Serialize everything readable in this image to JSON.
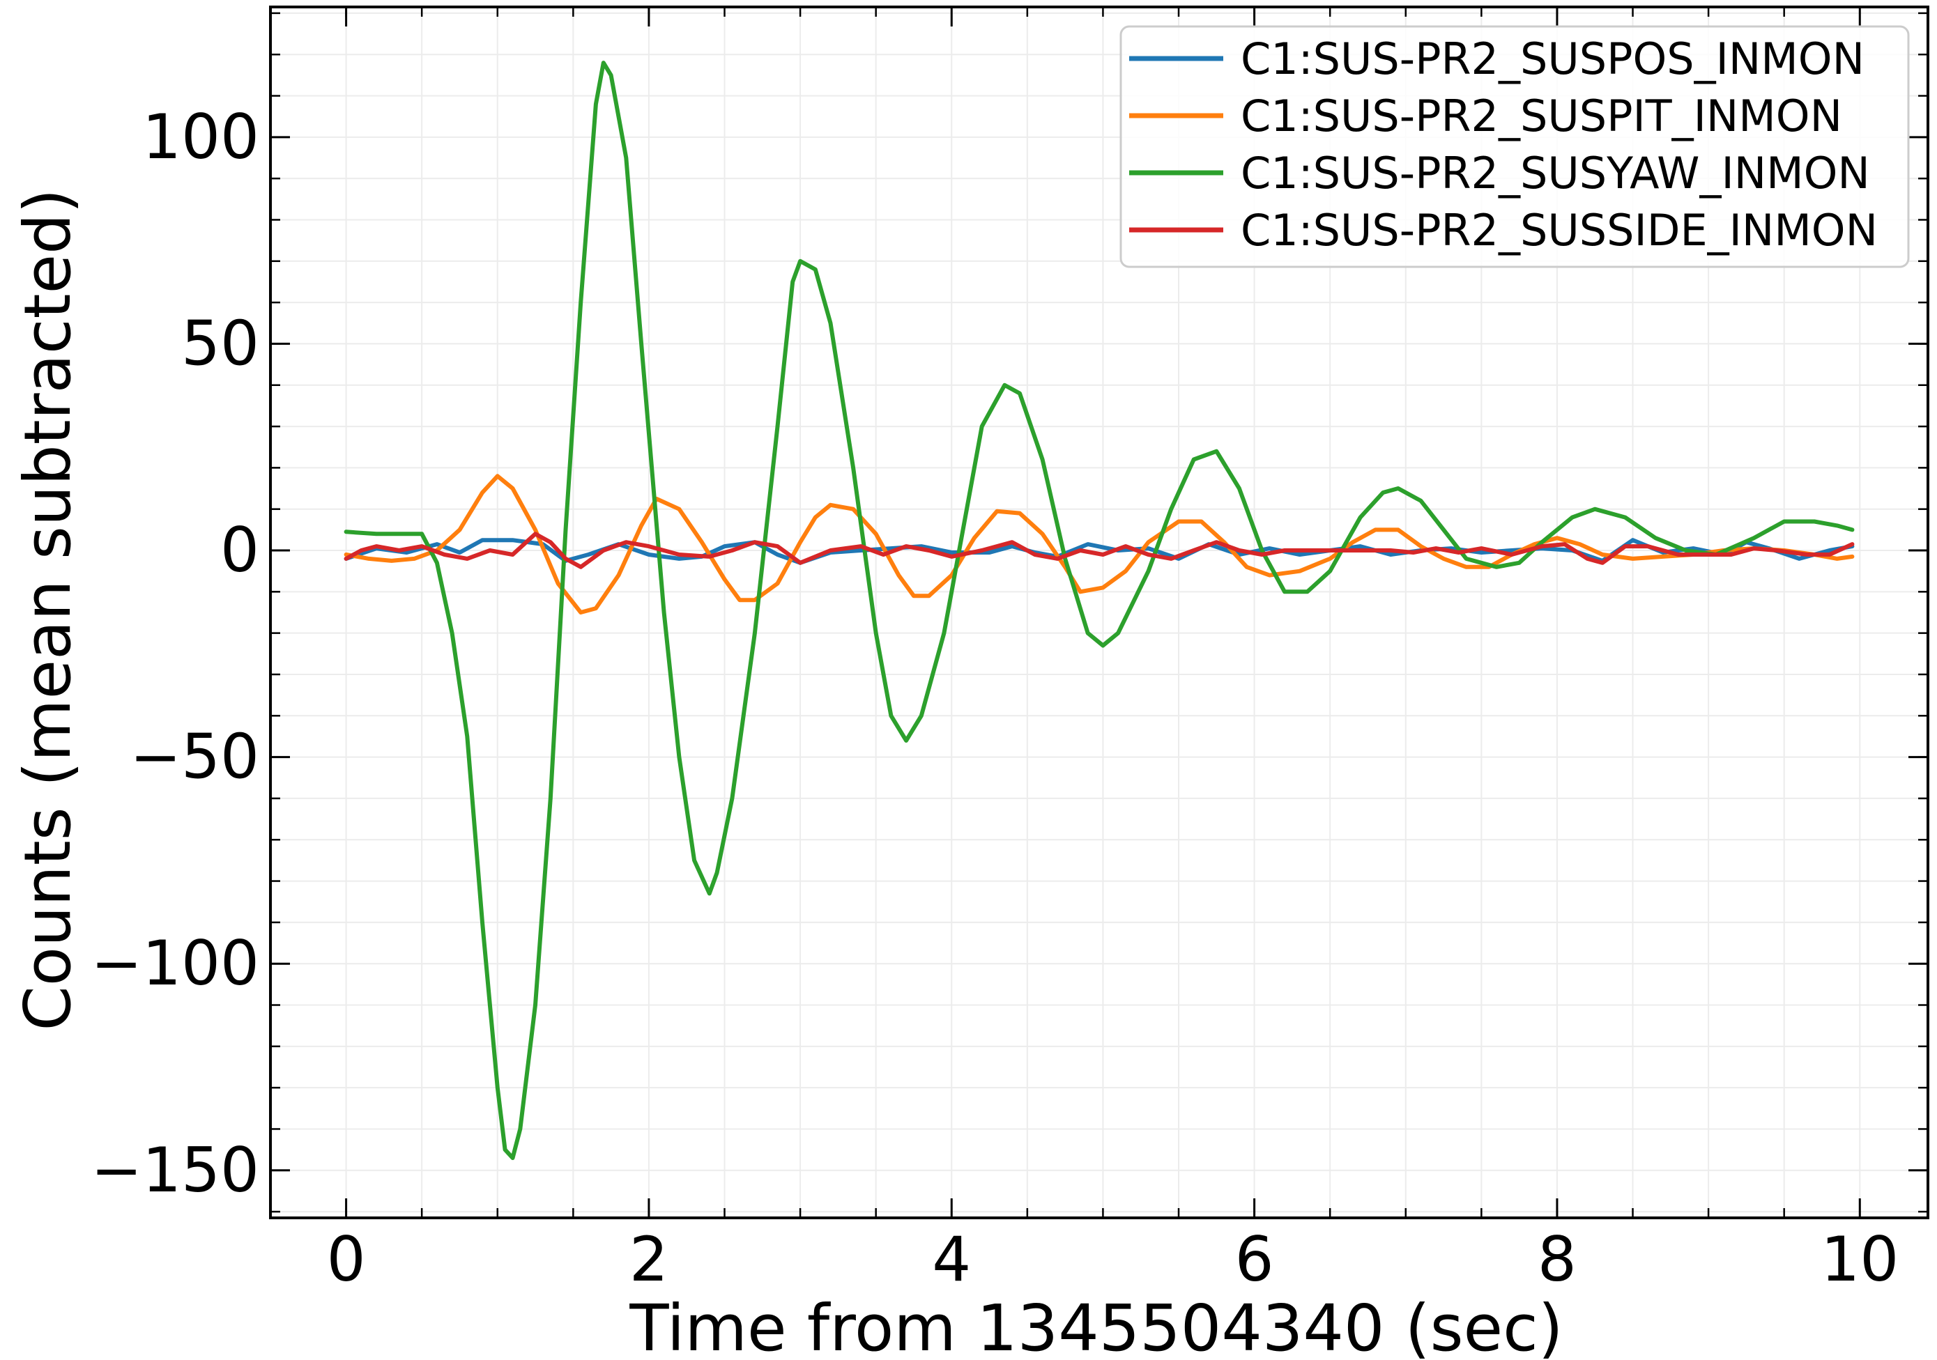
{
  "chart_data": {
    "type": "line",
    "title": "",
    "xlabel": "Time from 1345504340 (sec)",
    "ylabel": "Counts (mean subtracted)",
    "xlim": [
      -0.5,
      10.45
    ],
    "ylim": [
      -161.5,
      131.5
    ],
    "x_ticks": [
      0,
      2,
      4,
      6,
      8,
      10
    ],
    "y_ticks": [
      -150,
      -100,
      -50,
      0,
      50,
      100
    ],
    "x_tick_labels": [
      "0",
      "2",
      "4",
      "6",
      "8",
      "10"
    ],
    "y_tick_labels": [
      "−150",
      "−100",
      "−50",
      "0",
      "50",
      "100"
    ],
    "grid": true,
    "legend_position": "top-right",
    "series": [
      {
        "name": "C1:SUS-PR2_SUSPOS_INMON",
        "color": "#1f77b4",
        "points": [
          [
            0,
            -2
          ],
          [
            0.2,
            0.5
          ],
          [
            0.4,
            -0.5
          ],
          [
            0.6,
            1.5
          ],
          [
            0.75,
            -0.5
          ],
          [
            0.9,
            2.5
          ],
          [
            1.1,
            2.5
          ],
          [
            1.3,
            1.5
          ],
          [
            1.45,
            -2.5
          ],
          [
            1.6,
            -1
          ],
          [
            1.8,
            1.5
          ],
          [
            2.0,
            -1
          ],
          [
            2.2,
            -2
          ],
          [
            2.35,
            -1.5
          ],
          [
            2.5,
            1
          ],
          [
            2.7,
            2
          ],
          [
            2.85,
            -1
          ],
          [
            3.0,
            -3
          ],
          [
            3.2,
            -0.5
          ],
          [
            3.4,
            0
          ],
          [
            3.6,
            0.5
          ],
          [
            3.8,
            1
          ],
          [
            4.0,
            -0.5
          ],
          [
            4.25,
            -0.5
          ],
          [
            4.4,
            1
          ],
          [
            4.55,
            -0.5
          ],
          [
            4.7,
            -1.5
          ],
          [
            4.9,
            1.5
          ],
          [
            5.1,
            0
          ],
          [
            5.3,
            0.5
          ],
          [
            5.5,
            -2
          ],
          [
            5.7,
            1.5
          ],
          [
            5.9,
            -1
          ],
          [
            6.1,
            0.5
          ],
          [
            6.3,
            -1
          ],
          [
            6.5,
            0
          ],
          [
            6.7,
            1
          ],
          [
            6.9,
            -1
          ],
          [
            7.1,
            0
          ],
          [
            7.3,
            0.5
          ],
          [
            7.5,
            -0.5
          ],
          [
            7.7,
            0
          ],
          [
            7.9,
            0.5
          ],
          [
            8.1,
            0
          ],
          [
            8.3,
            -2.5
          ],
          [
            8.5,
            2.5
          ],
          [
            8.7,
            -0.5
          ],
          [
            8.9,
            0.5
          ],
          [
            9.1,
            -1
          ],
          [
            9.25,
            2
          ],
          [
            9.4,
            0.5
          ],
          [
            9.6,
            -2
          ],
          [
            9.8,
            0
          ],
          [
            9.95,
            1
          ]
        ]
      },
      {
        "name": "C1:SUS-PR2_SUSPIT_INMON",
        "color": "#ff7f0e",
        "points": [
          [
            0,
            -1
          ],
          [
            0.15,
            -2
          ],
          [
            0.3,
            -2.5
          ],
          [
            0.45,
            -2
          ],
          [
            0.6,
            0
          ],
          [
            0.75,
            5
          ],
          [
            0.9,
            14
          ],
          [
            1.0,
            18
          ],
          [
            1.1,
            15
          ],
          [
            1.25,
            5
          ],
          [
            1.4,
            -8
          ],
          [
            1.55,
            -15
          ],
          [
            1.65,
            -14
          ],
          [
            1.8,
            -6
          ],
          [
            1.95,
            6
          ],
          [
            2.05,
            12.5
          ],
          [
            2.2,
            10
          ],
          [
            2.35,
            2
          ],
          [
            2.5,
            -7
          ],
          [
            2.6,
            -12
          ],
          [
            2.7,
            -12
          ],
          [
            2.85,
            -8
          ],
          [
            3.0,
            2
          ],
          [
            3.1,
            8
          ],
          [
            3.2,
            11
          ],
          [
            3.35,
            10
          ],
          [
            3.5,
            4
          ],
          [
            3.65,
            -6
          ],
          [
            3.75,
            -11
          ],
          [
            3.85,
            -11
          ],
          [
            4.0,
            -6
          ],
          [
            4.15,
            3
          ],
          [
            4.3,
            9.5
          ],
          [
            4.45,
            9
          ],
          [
            4.6,
            4
          ],
          [
            4.75,
            -4
          ],
          [
            4.85,
            -10
          ],
          [
            5.0,
            -9
          ],
          [
            5.15,
            -5
          ],
          [
            5.3,
            2
          ],
          [
            5.5,
            7
          ],
          [
            5.65,
            7
          ],
          [
            5.8,
            2
          ],
          [
            5.95,
            -4
          ],
          [
            6.1,
            -6
          ],
          [
            6.3,
            -5
          ],
          [
            6.5,
            -2
          ],
          [
            6.65,
            2
          ],
          [
            6.8,
            5
          ],
          [
            6.95,
            5
          ],
          [
            7.1,
            1
          ],
          [
            7.25,
            -2
          ],
          [
            7.4,
            -4
          ],
          [
            7.55,
            -4
          ],
          [
            7.7,
            -1
          ],
          [
            7.85,
            1.5
          ],
          [
            8.0,
            3
          ],
          [
            8.15,
            1.5
          ],
          [
            8.3,
            -1
          ],
          [
            8.5,
            -2
          ],
          [
            8.7,
            -1.5
          ],
          [
            8.9,
            -1
          ],
          [
            9.1,
            0
          ],
          [
            9.3,
            0.5
          ],
          [
            9.5,
            0
          ],
          [
            9.7,
            -1
          ],
          [
            9.85,
            -2
          ],
          [
            9.95,
            -1.5
          ]
        ]
      },
      {
        "name": "C1:SUS-PR2_SUSYAW_INMON",
        "color": "#2ca02c",
        "points": [
          [
            0,
            4.5
          ],
          [
            0.2,
            4
          ],
          [
            0.35,
            4
          ],
          [
            0.5,
            4
          ],
          [
            0.6,
            -3
          ],
          [
            0.7,
            -20
          ],
          [
            0.8,
            -45
          ],
          [
            0.9,
            -90
          ],
          [
            1.0,
            -130
          ],
          [
            1.05,
            -145
          ],
          [
            1.1,
            -147
          ],
          [
            1.15,
            -140
          ],
          [
            1.25,
            -110
          ],
          [
            1.35,
            -60
          ],
          [
            1.45,
            5
          ],
          [
            1.55,
            60
          ],
          [
            1.65,
            108
          ],
          [
            1.7,
            118
          ],
          [
            1.75,
            115
          ],
          [
            1.85,
            95
          ],
          [
            1.95,
            50
          ],
          [
            2.1,
            -15
          ],
          [
            2.2,
            -50
          ],
          [
            2.3,
            -75
          ],
          [
            2.4,
            -83
          ],
          [
            2.45,
            -78
          ],
          [
            2.55,
            -60
          ],
          [
            2.7,
            -20
          ],
          [
            2.85,
            30
          ],
          [
            2.95,
            65
          ],
          [
            3.0,
            70
          ],
          [
            3.1,
            68
          ],
          [
            3.2,
            55
          ],
          [
            3.35,
            20
          ],
          [
            3.5,
            -20
          ],
          [
            3.6,
            -40
          ],
          [
            3.7,
            -46
          ],
          [
            3.8,
            -40
          ],
          [
            3.95,
            -20
          ],
          [
            4.1,
            10
          ],
          [
            4.2,
            30
          ],
          [
            4.35,
            40
          ],
          [
            4.45,
            38
          ],
          [
            4.6,
            22
          ],
          [
            4.75,
            -2
          ],
          [
            4.9,
            -20
          ],
          [
            5.0,
            -23
          ],
          [
            5.1,
            -20
          ],
          [
            5.3,
            -5
          ],
          [
            5.45,
            10
          ],
          [
            5.6,
            22
          ],
          [
            5.75,
            24
          ],
          [
            5.9,
            15
          ],
          [
            6.05,
            0
          ],
          [
            6.2,
            -10
          ],
          [
            6.35,
            -10
          ],
          [
            6.5,
            -5
          ],
          [
            6.7,
            8
          ],
          [
            6.85,
            14
          ],
          [
            6.95,
            15
          ],
          [
            7.1,
            12
          ],
          [
            7.25,
            5
          ],
          [
            7.4,
            -2
          ],
          [
            7.6,
            -4
          ],
          [
            7.75,
            -3
          ],
          [
            7.9,
            2
          ],
          [
            8.1,
            8
          ],
          [
            8.25,
            10
          ],
          [
            8.45,
            8
          ],
          [
            8.65,
            3
          ],
          [
            8.85,
            0
          ],
          [
            9.05,
            -1
          ],
          [
            9.3,
            3
          ],
          [
            9.5,
            7
          ],
          [
            9.7,
            7
          ],
          [
            9.85,
            6
          ],
          [
            9.95,
            5
          ]
        ]
      },
      {
        "name": "C1:SUS-PR2_SUSSIDE_INMON",
        "color": "#d62728",
        "points": [
          [
            0,
            -2
          ],
          [
            0.1,
            0
          ],
          [
            0.2,
            1
          ],
          [
            0.35,
            0
          ],
          [
            0.5,
            1
          ],
          [
            0.65,
            -1
          ],
          [
            0.8,
            -2
          ],
          [
            0.95,
            0
          ],
          [
            1.1,
            -1
          ],
          [
            1.25,
            4
          ],
          [
            1.35,
            2
          ],
          [
            1.45,
            -2
          ],
          [
            1.55,
            -4
          ],
          [
            1.7,
            0
          ],
          [
            1.85,
            2
          ],
          [
            2.0,
            1
          ],
          [
            2.2,
            -1
          ],
          [
            2.4,
            -1.5
          ],
          [
            2.55,
            0
          ],
          [
            2.7,
            2
          ],
          [
            2.85,
            1
          ],
          [
            3.0,
            -3
          ],
          [
            3.2,
            0
          ],
          [
            3.4,
            1
          ],
          [
            3.55,
            -1
          ],
          [
            3.7,
            1
          ],
          [
            3.85,
            0
          ],
          [
            4.0,
            -1.5
          ],
          [
            4.2,
            0
          ],
          [
            4.4,
            2
          ],
          [
            4.55,
            -1
          ],
          [
            4.7,
            -2
          ],
          [
            4.85,
            0
          ],
          [
            5.0,
            -1
          ],
          [
            5.15,
            1
          ],
          [
            5.3,
            -1
          ],
          [
            5.45,
            -2
          ],
          [
            5.6,
            0
          ],
          [
            5.75,
            2
          ],
          [
            5.9,
            0
          ],
          [
            6.05,
            -1
          ],
          [
            6.2,
            0
          ],
          [
            6.45,
            0
          ],
          [
            6.7,
            0
          ],
          [
            6.9,
            0
          ],
          [
            7.05,
            -0.5
          ],
          [
            7.2,
            0.5
          ],
          [
            7.35,
            -0.5
          ],
          [
            7.5,
            0.5
          ],
          [
            7.7,
            -1
          ],
          [
            7.9,
            1
          ],
          [
            8.05,
            1.5
          ],
          [
            8.2,
            -2
          ],
          [
            8.3,
            -3
          ],
          [
            8.45,
            1
          ],
          [
            8.6,
            1
          ],
          [
            8.8,
            -1
          ],
          [
            9.0,
            -1
          ],
          [
            9.15,
            -1
          ],
          [
            9.3,
            0.5
          ],
          [
            9.45,
            0
          ],
          [
            9.65,
            -1
          ],
          [
            9.8,
            -1
          ],
          [
            9.95,
            1.5
          ]
        ]
      }
    ]
  }
}
